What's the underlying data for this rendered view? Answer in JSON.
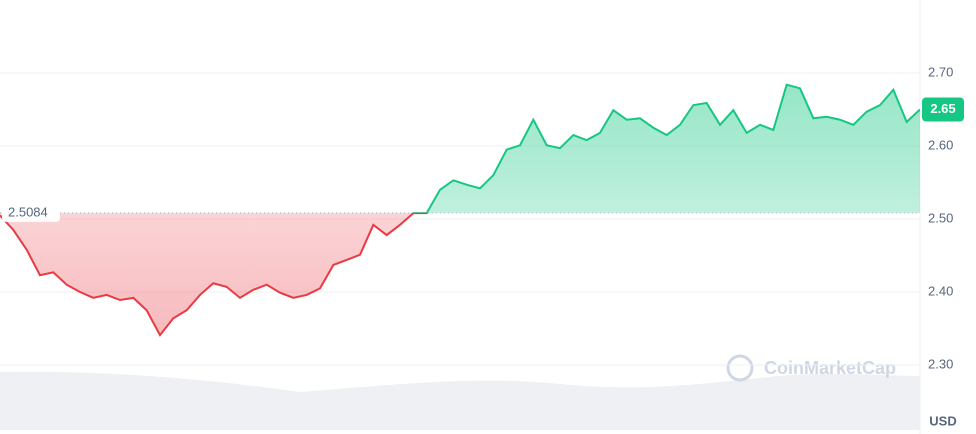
{
  "chart_data": {
    "type": "line",
    "values": [
      2.505,
      2.485,
      2.458,
      2.423,
      2.427,
      2.41,
      2.4,
      2.392,
      2.396,
      2.389,
      2.392,
      2.375,
      2.341,
      2.364,
      2.375,
      2.396,
      2.412,
      2.407,
      2.392,
      2.403,
      2.41,
      2.399,
      2.392,
      2.396,
      2.405,
      2.437,
      2.444,
      2.451,
      2.492,
      2.478,
      2.492,
      2.508,
      2.508,
      2.54,
      2.553,
      2.547,
      2.542,
      2.56,
      2.595,
      2.601,
      2.636,
      2.601,
      2.597,
      2.615,
      2.608,
      2.618,
      2.649,
      2.636,
      2.638,
      2.625,
      2.615,
      2.629,
      2.656,
      2.659,
      2.629,
      2.649,
      2.618,
      2.629,
      2.622,
      2.684,
      2.679,
      2.638,
      2.64,
      2.636,
      2.629,
      2.647,
      2.656,
      2.677,
      2.633,
      2.65
    ],
    "baseline": 2.5084,
    "up_color": "#16c784",
    "down_color": "#ea3943",
    "ylim": [
      2.3,
      2.8
    ],
    "yticks": [
      {
        "value": 2.3,
        "label": "2.30"
      },
      {
        "value": 2.4,
        "label": "2.40"
      },
      {
        "value": 2.5,
        "label": "2.50"
      },
      {
        "value": 2.6,
        "label": "2.60"
      },
      {
        "value": 2.7,
        "label": "2.70"
      }
    ],
    "grid": true,
    "currency": "USD",
    "watermark": "CoinMarketCap"
  }
}
